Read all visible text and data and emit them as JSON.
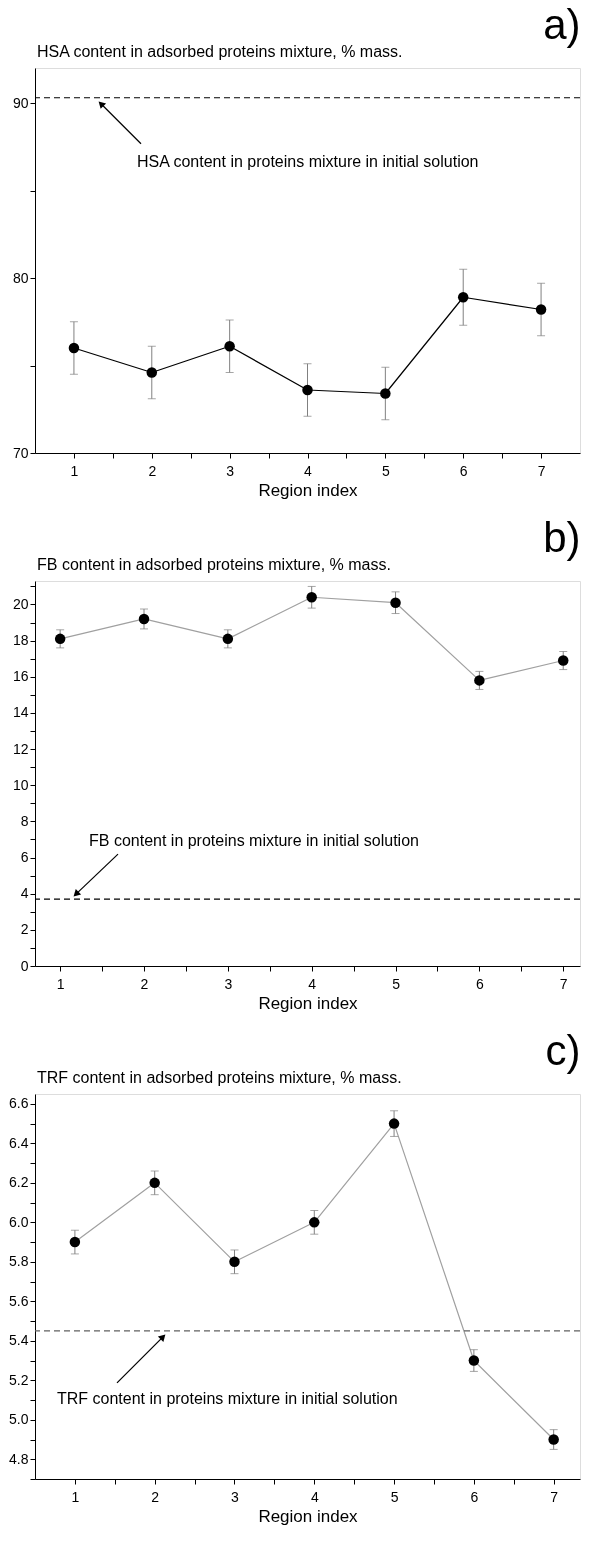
{
  "chart_data": [
    {
      "type": "line",
      "title": "a)",
      "ylabel": "HSA content in adsorbed proteins mixture, % mass.",
      "xlabel": "Region index",
      "marker": "circle",
      "grid": false,
      "x": [
        1,
        2,
        3,
        4,
        5,
        6,
        7
      ],
      "series": [
        {
          "color": "#000000",
          "values": [
            76.0,
            74.6,
            76.1,
            73.6,
            73.4,
            78.9,
            78.2
          ],
          "errors": [
            1.5,
            1.5,
            1.5,
            1.5,
            1.5,
            1.6,
            1.5
          ]
        }
      ],
      "ref_lines": [
        {
          "axis": "y",
          "value": 90.3,
          "label": "HSA content in proteins mixture in initial solution",
          "line_style": "dashed",
          "color": "#000000"
        }
      ],
      "xlim": [
        0.5,
        7.5
      ],
      "xticks": [
        1,
        {
          "value": 1.5,
          "label": null
        },
        2,
        {
          "value": 2.5,
          "label": null
        },
        3,
        {
          "value": 3.5,
          "label": null
        },
        4,
        {
          "value": 4.5,
          "label": null
        },
        5,
        {
          "value": 5.5,
          "label": null
        },
        6,
        {
          "value": 6.5,
          "label": null
        },
        7
      ],
      "ylim": [
        70,
        92
      ],
      "yticks": [
        70,
        {
          "value": 75,
          "label": null
        },
        80,
        {
          "value": 85,
          "label": null
        },
        90
      ]
    },
    {
      "type": "line",
      "title": "b)",
      "ylabel": "FB content in adsorbed proteins mixture, % mass.",
      "xlabel": "Region index",
      "marker": "circle",
      "grid": false,
      "x": [
        1,
        2,
        3,
        4,
        5,
        6,
        7
      ],
      "series": [
        {
          "color": "#a0a0a0",
          "values": [
            18.1,
            19.2,
            18.1,
            20.4,
            20.1,
            15.8,
            16.9
          ],
          "errors": [
            0.5,
            0.55,
            0.5,
            0.6,
            0.6,
            0.5,
            0.5
          ]
        }
      ],
      "ref_lines": [
        {
          "axis": "y",
          "value": 3.7,
          "label": "FB content in proteins mixture in initial solution",
          "line_style": "dashed",
          "color": "#000000"
        }
      ],
      "xlim": [
        0.7,
        7.2
      ],
      "xticks": [
        1,
        {
          "value": 1.5,
          "label": null
        },
        2,
        {
          "value": 2.5,
          "label": null
        },
        3,
        {
          "value": 3.5,
          "label": null
        },
        4,
        {
          "value": 4.5,
          "label": null
        },
        5,
        {
          "value": 5.5,
          "label": null
        },
        6,
        {
          "value": 6.5,
          "label": null
        },
        7
      ],
      "ylim": [
        0,
        21.3
      ],
      "yticks": [
        0,
        {
          "value": 1,
          "label": null
        },
        2,
        {
          "value": 3,
          "label": null
        },
        4,
        {
          "value": 5,
          "label": null
        },
        6,
        {
          "value": 7,
          "label": null
        },
        8,
        {
          "value": 9,
          "label": null
        },
        10,
        {
          "value": 11,
          "label": null
        },
        12,
        {
          "value": 13,
          "label": null
        },
        14,
        {
          "value": 15,
          "label": null
        },
        16,
        {
          "value": 17,
          "label": null
        },
        18,
        {
          "value": 19,
          "label": null
        },
        20,
        {
          "value": 21,
          "label": null
        }
      ]
    },
    {
      "type": "line",
      "title": "c)",
      "ylabel": "TRF content in adsorbed proteins mixture, % mass.",
      "xlabel": "Region index",
      "marker": "circle",
      "grid": false,
      "x": [
        1,
        2,
        3,
        4,
        5,
        6,
        7
      ],
      "series": [
        {
          "color": "#a0a0a0",
          "values": [
            5.9,
            6.2,
            5.8,
            6.0,
            6.5,
            5.3,
            4.9
          ],
          "errors": [
            0.06,
            0.06,
            0.06,
            0.06,
            0.065,
            0.055,
            0.05
          ]
        }
      ],
      "ref_lines": [
        {
          "axis": "y",
          "value": 5.45,
          "label": "TRF content in proteins mixture in initial solution",
          "line_style": "dashed",
          "color": "#606060"
        }
      ],
      "xlim": [
        0.5,
        7.33
      ],
      "xticks": [
        1,
        {
          "value": 1.5,
          "label": null
        },
        2,
        {
          "value": 2.5,
          "label": null
        },
        3,
        {
          "value": 3.5,
          "label": null
        },
        4,
        {
          "value": 4.5,
          "label": null
        },
        5,
        {
          "value": 5.5,
          "label": null
        },
        6,
        {
          "value": 6.5,
          "label": null
        },
        7
      ],
      "ylim": [
        4.7,
        6.65
      ],
      "yticks": [
        {
          "value": 4.7,
          "label": null
        },
        {
          "value": 4.8,
          "label": "4.8"
        },
        {
          "value": 4.9,
          "label": null
        },
        {
          "value": 5.0,
          "label": "5.0"
        },
        {
          "value": 5.1,
          "label": null
        },
        {
          "value": 5.2,
          "label": "5.2"
        },
        {
          "value": 5.3,
          "label": null
        },
        {
          "value": 5.4,
          "label": "5.4"
        },
        {
          "value": 5.5,
          "label": null
        },
        {
          "value": 5.6,
          "label": "5.6"
        },
        {
          "value": 5.7,
          "label": null
        },
        {
          "value": 5.8,
          "label": "5.8"
        },
        {
          "value": 5.9,
          "label": null
        },
        {
          "value": 6.0,
          "label": "6.0"
        },
        {
          "value": 6.1,
          "label": null
        },
        {
          "value": 6.2,
          "label": "6.2"
        },
        {
          "value": 6.3,
          "label": null
        },
        {
          "value": 6.4,
          "label": "6.4"
        },
        {
          "value": 6.5,
          "label": null
        },
        {
          "value": 6.6,
          "label": "6.6"
        }
      ]
    }
  ]
}
